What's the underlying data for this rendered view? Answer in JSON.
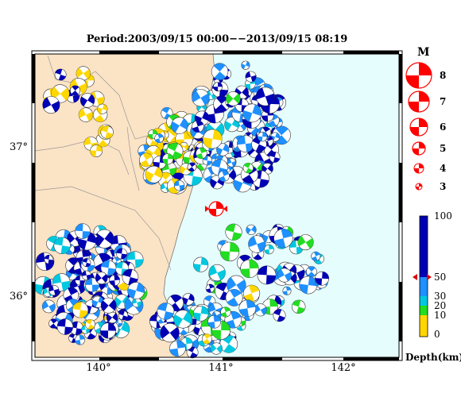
{
  "header": {
    "period": "Period:2003/09/15 00:00−−2013/09/15 08:19"
  },
  "map": {
    "lat_labels": [
      "37°",
      "36°"
    ],
    "lon_labels": [
      "140°",
      "141°",
      "142°"
    ],
    "land_color": "#fbe3c5",
    "sea_color": "#e6fdfd"
  },
  "magnitude_legend": {
    "title": "M",
    "values": [
      "8",
      "7",
      "6",
      "5",
      "4",
      "3"
    ],
    "beachball_color": "#ff0000"
  },
  "depth_legend": {
    "title": "Depth(km)",
    "ticks": [
      "100",
      "50",
      "30",
      "20",
      "10",
      "0"
    ],
    "colors": [
      {
        "range": "0-10",
        "color": "#ffd700"
      },
      {
        "range": "10-20",
        "color": "#22dd22"
      },
      {
        "range": "20-30",
        "color": "#00c8e0"
      },
      {
        "range": "30-50",
        "color": "#1e90ff"
      },
      {
        "range": "50-100",
        "color": "#0000b4"
      }
    ],
    "marker_depth": 50
  },
  "mainshock": {
    "color": "#ff0000",
    "depth_band": "30-50"
  }
}
